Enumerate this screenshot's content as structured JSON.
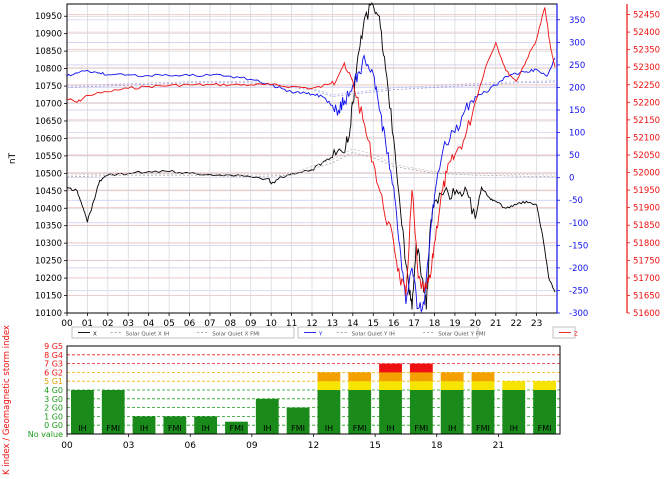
{
  "colors": {
    "x": "#000000",
    "y": "#1010ee",
    "z": "#ee1010",
    "quiet_x_ih": "#9a9a9a",
    "quiet_x_fmi": "#c8b4b4",
    "quiet_y_ih": "#9090e0",
    "quiet_y_fmi": "#b0b0e8",
    "k_green": "#1a8a1a",
    "k_yellow": "#f4e400",
    "k_orange": "#f4a000",
    "k_red": "#ee1010"
  },
  "chart_data": [
    {
      "type": "line",
      "ylabel": "nT",
      "x_ticks": [
        "00",
        "01",
        "02",
        "03",
        "04",
        "05",
        "06",
        "07",
        "08",
        "09",
        "10",
        "11",
        "12",
        "13",
        "14",
        "15",
        "16",
        "17",
        "18",
        "19",
        "20",
        "21",
        "22",
        "23"
      ],
      "xlim": [
        0,
        24
      ],
      "grid": true,
      "left_axis": {
        "ylim": [
          10100,
          10985
        ],
        "ticks": [
          "10100",
          "10150",
          "10200",
          "10250",
          "10300",
          "10350",
          "10400",
          "10450",
          "10500",
          "10550",
          "10600",
          "10650",
          "10700",
          "10750",
          "10800",
          "10850",
          "10900",
          "10950"
        ]
      },
      "right_axis_y": {
        "ylim": [
          -300,
          385
        ],
        "ticks": [
          "-300",
          "-250",
          "-200",
          "-150",
          "-100",
          "-50",
          "0",
          "50",
          "100",
          "150",
          "200",
          "250",
          "300",
          "350"
        ]
      },
      "right_axis_z": {
        "ylim": [
          51600,
          52480
        ],
        "ticks": [
          "51600",
          "51650",
          "51700",
          "51750",
          "51800",
          "51850",
          "51900",
          "51950",
          "52000",
          "52050",
          "52100",
          "52150",
          "52200",
          "52250",
          "52300",
          "52350",
          "52400",
          "52450"
        ]
      },
      "legend": {
        "x": [
          "X",
          "Solar Quiet X IH",
          "Solar Quiet X FMI"
        ],
        "y": [
          "Y",
          "Solar Quiet Y IH",
          "Solar Quiet Y FMI"
        ],
        "z": [
          "Z"
        ]
      },
      "series": [
        {
          "name": "X",
          "axis": "left",
          "color_key": "x",
          "points": [
            [
              0,
              10460
            ],
            [
              0.5,
              10450
            ],
            [
              0.8,
              10400
            ],
            [
              1.0,
              10360
            ],
            [
              1.3,
              10420
            ],
            [
              1.6,
              10480
            ],
            [
              2,
              10495
            ],
            [
              3,
              10500
            ],
            [
              4,
              10505
            ],
            [
              5,
              10505
            ],
            [
              6,
              10500
            ],
            [
              7,
              10497
            ],
            [
              8,
              10495
            ],
            [
              9,
              10490
            ],
            [
              9.9,
              10485
            ],
            [
              10,
              10470
            ],
            [
              10.5,
              10490
            ],
            [
              11,
              10500
            ],
            [
              12,
              10510
            ],
            [
              12.5,
              10530
            ],
            [
              13,
              10545
            ],
            [
              13.5,
              10560
            ],
            [
              13.8,
              10600
            ],
            [
              14,
              10700
            ],
            [
              14.3,
              10850
            ],
            [
              14.6,
              10950
            ],
            [
              15,
              10980
            ],
            [
              15.3,
              10950
            ],
            [
              15.6,
              10800
            ],
            [
              16,
              10600
            ],
            [
              16.4,
              10350
            ],
            [
              16.7,
              10200
            ],
            [
              16.9,
              10110
            ],
            [
              17.1,
              10300
            ],
            [
              17.4,
              10200
            ],
            [
              17.6,
              10110
            ],
            [
              17.8,
              10350
            ],
            [
              18,
              10420
            ],
            [
              18.5,
              10450
            ],
            [
              19,
              10440
            ],
            [
              19.5,
              10460
            ],
            [
              20,
              10370
            ],
            [
              20.3,
              10460
            ],
            [
              20.7,
              10430
            ],
            [
              21,
              10420
            ],
            [
              21.5,
              10400
            ],
            [
              22,
              10410
            ],
            [
              22.5,
              10420
            ],
            [
              23,
              10410
            ],
            [
              23.3,
              10320
            ],
            [
              23.6,
              10200
            ],
            [
              23.9,
              10160
            ]
          ]
        },
        {
          "name": "Solar Quiet X IH",
          "axis": "left",
          "color_key": "quiet_x_ih",
          "points": [
            [
              0,
              10490
            ],
            [
              3,
              10495
            ],
            [
              6,
              10495
            ],
            [
              9,
              10490
            ],
            [
              11,
              10495
            ],
            [
              13,
              10530
            ],
            [
              14,
              10560
            ],
            [
              15,
              10545
            ],
            [
              16,
              10520
            ],
            [
              18,
              10500
            ],
            [
              20,
              10495
            ],
            [
              22,
              10492
            ],
            [
              24,
              10490
            ]
          ]
        },
        {
          "name": "Solar Quiet X FMI",
          "axis": "left",
          "color_key": "quiet_x_fmi",
          "points": [
            [
              0,
              10495
            ],
            [
              3,
              10500
            ],
            [
              6,
              10500
            ],
            [
              9,
              10495
            ],
            [
              11,
              10500
            ],
            [
              13,
              10540
            ],
            [
              14,
              10570
            ],
            [
              15,
              10555
            ],
            [
              16,
              10525
            ],
            [
              18,
              10505
            ],
            [
              20,
              10500
            ],
            [
              22,
              10497
            ],
            [
              24,
              10495
            ]
          ]
        },
        {
          "name": "Y",
          "axis": "y",
          "color_key": "y",
          "points": [
            [
              0,
              225
            ],
            [
              0.5,
              232
            ],
            [
              1,
              238
            ],
            [
              1.5,
              232
            ],
            [
              2,
              228
            ],
            [
              3,
              228
            ],
            [
              4,
              226
            ],
            [
              5,
              226
            ],
            [
              6,
              226
            ],
            [
              7,
              227
            ],
            [
              8,
              225
            ],
            [
              9,
              218
            ],
            [
              10,
              205
            ],
            [
              10.5,
              198
            ],
            [
              11,
              190
            ],
            [
              11.5,
              188
            ],
            [
              12,
              185
            ],
            [
              12.5,
              180
            ],
            [
              13,
              160
            ],
            [
              13.3,
              150
            ],
            [
              13.6,
              170
            ],
            [
              14,
              205
            ],
            [
              14.3,
              235
            ],
            [
              14.6,
              260
            ],
            [
              15,
              230
            ],
            [
              15.3,
              150
            ],
            [
              15.6,
              80
            ],
            [
              16,
              -20
            ],
            [
              16.3,
              -150
            ],
            [
              16.6,
              -280
            ],
            [
              16.9,
              -200
            ],
            [
              17.2,
              -290
            ],
            [
              17.5,
              -280
            ],
            [
              17.8,
              -120
            ],
            [
              18,
              -40
            ],
            [
              18.5,
              80
            ],
            [
              19,
              100
            ],
            [
              19.5,
              150
            ],
            [
              20,
              180
            ],
            [
              20.5,
              190
            ],
            [
              21,
              205
            ],
            [
              21.5,
              225
            ],
            [
              22,
              230
            ],
            [
              22.5,
              235
            ],
            [
              23,
              240
            ],
            [
              23.5,
              225
            ],
            [
              23.9,
              265
            ]
          ]
        },
        {
          "name": "Solar Quiet Y IH",
          "axis": "y",
          "color_key": "quiet_y_ih",
          "points": [
            [
              0,
              200
            ],
            [
              3,
              205
            ],
            [
              6,
              210
            ],
            [
              9,
              210
            ],
            [
              11,
              200
            ],
            [
              12,
              195
            ],
            [
              13,
              180
            ],
            [
              14,
              185
            ],
            [
              15,
              190
            ],
            [
              16,
              195
            ],
            [
              18,
              200
            ],
            [
              20,
              205
            ],
            [
              22,
              210
            ],
            [
              24,
              212
            ]
          ]
        },
        {
          "name": "Solar Quiet Y FMI",
          "axis": "y",
          "color_key": "quiet_y_fmi",
          "points": [
            [
              0,
              204
            ],
            [
              3,
              208
            ],
            [
              6,
              213
            ],
            [
              9,
              213
            ],
            [
              11,
              204
            ],
            [
              12,
              198
            ],
            [
              13,
              184
            ],
            [
              14,
              188
            ],
            [
              15,
              194
            ],
            [
              16,
              199
            ],
            [
              18,
              204
            ],
            [
              20,
              209
            ],
            [
              22,
              213
            ],
            [
              24,
              215
            ]
          ]
        },
        {
          "name": "Z",
          "axis": "z",
          "color_key": "z",
          "points": [
            [
              0,
              52210
            ],
            [
              0.5,
              52200
            ],
            [
              1,
              52220
            ],
            [
              2,
              52230
            ],
            [
              3,
              52240
            ],
            [
              4,
              52245
            ],
            [
              5,
              52248
            ],
            [
              6,
              52250
            ],
            [
              7,
              52250
            ],
            [
              8,
              52250
            ],
            [
              9,
              52250
            ],
            [
              10,
              52250
            ],
            [
              11,
              52245
            ],
            [
              12,
              52240
            ],
            [
              12.5,
              52245
            ],
            [
              13,
              52260
            ],
            [
              13.5,
              52300
            ],
            [
              14,
              52260
            ],
            [
              14.5,
              52150
            ],
            [
              15,
              52030
            ],
            [
              15.5,
              51900
            ],
            [
              16,
              51800
            ],
            [
              16.3,
              51700
            ],
            [
              16.6,
              51650
            ],
            [
              16.9,
              51950
            ],
            [
              17.2,
              51700
            ],
            [
              17.5,
              51660
            ],
            [
              17.8,
              51700
            ],
            [
              18,
              51800
            ],
            [
              18.3,
              51920
            ],
            [
              18.6,
              52000
            ],
            [
              19,
              52050
            ],
            [
              19.5,
              52100
            ],
            [
              20,
              52200
            ],
            [
              20.5,
              52300
            ],
            [
              21,
              52370
            ],
            [
              21.5,
              52290
            ],
            [
              22,
              52260
            ],
            [
              22.5,
              52320
            ],
            [
              23,
              52380
            ],
            [
              23.4,
              52470
            ],
            [
              23.7,
              52350
            ],
            [
              23.9,
              52300
            ]
          ]
        }
      ]
    },
    {
      "type": "bar",
      "ylabel": "K index / Geomagnetic storm index",
      "y_levels": [
        "No value",
        "0 G0",
        "1 G0",
        "2 G0",
        "3 G0",
        "4 G0",
        "5 G1",
        "6 G2",
        "7 G3",
        "8 G4",
        "9 G5"
      ],
      "x_ticks": [
        "00",
        "03",
        "06",
        "09",
        "12",
        "15",
        "18",
        "21"
      ],
      "xlim": [
        0,
        24
      ],
      "bars": [
        {
          "t": 0,
          "source": "IH",
          "value": 4
        },
        {
          "t": 1.5,
          "source": "FMI",
          "value": 4
        },
        {
          "t": 3,
          "source": "IH",
          "value": 1
        },
        {
          "t": 4.5,
          "source": "FMI",
          "value": 1
        },
        {
          "t": 6,
          "source": "IH",
          "value": 1
        },
        {
          "t": 7.5,
          "source": "FMI",
          "value": 0.4
        },
        {
          "t": 9,
          "source": "IH",
          "value": 3
        },
        {
          "t": 10.5,
          "source": "FMI",
          "value": 2
        },
        {
          "t": 12,
          "source": "IH",
          "value": 6
        },
        {
          "t": 13.5,
          "source": "FMI",
          "value": 6
        },
        {
          "t": 15,
          "source": "IH",
          "value": 7
        },
        {
          "t": 16.5,
          "source": "FMI",
          "value": 7
        },
        {
          "t": 18,
          "source": "IH",
          "value": 6
        },
        {
          "t": 19.5,
          "source": "FMI",
          "value": 6
        },
        {
          "t": 21,
          "source": "IH",
          "value": 5
        },
        {
          "t": 22.5,
          "source": "FMI",
          "value": 5
        }
      ]
    }
  ]
}
